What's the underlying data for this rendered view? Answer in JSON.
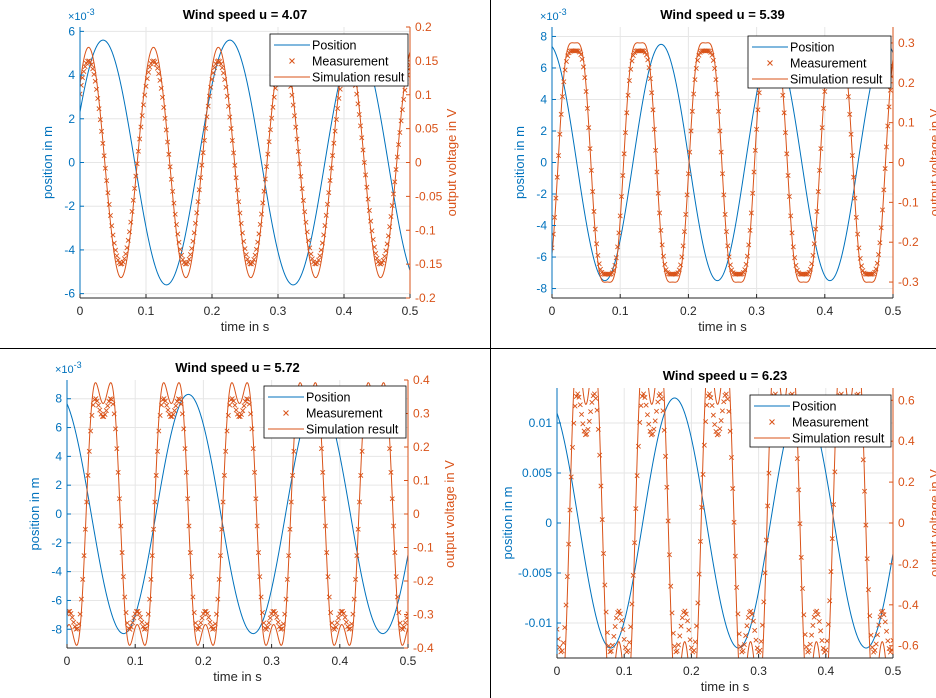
{
  "figure": {
    "colors": {
      "position": "#0072BD",
      "measurement": "#D95319",
      "simulation": "#D95319",
      "axis_left": "#0072BD",
      "axis_right": "#D95319",
      "grid": "#e6e6e6",
      "text": "#262626"
    }
  },
  "chart_data": [
    {
      "type": "line",
      "title": "Wind speed u = 4.07",
      "xlabel": "time in s",
      "ylabel": "position in m",
      "y2label": "output voltage in V",
      "y_exponent": "×10^-3",
      "xlim": [
        0,
        0.5
      ],
      "ylim": [
        -6.2,
        6.2
      ],
      "y2lim": [
        -0.2,
        0.2
      ],
      "xticks": [
        0,
        0.1,
        0.2,
        0.3,
        0.4,
        0.5
      ],
      "xtick_labels": [
        "0",
        "0.1",
        "0.2",
        "0.3",
        "0.4",
        "0.5"
      ],
      "yticks": [
        -6,
        -4,
        -2,
        0,
        2,
        4,
        6
      ],
      "ytick_labels": [
        "-6",
        "-4",
        "-2",
        "0",
        "2",
        "4",
        "6"
      ],
      "y2ticks": [
        -0.2,
        -0.15,
        -0.1,
        -0.05,
        0,
        0.05,
        0.1,
        0.15,
        0.2
      ],
      "y2tick_labels": [
        "-0.2",
        "-0.15",
        "-0.1",
        "-0.05",
        "0",
        "0.05",
        "0.1",
        "0.15",
        "0.2"
      ],
      "grid": true,
      "legend_position": "top-right",
      "series": [
        {
          "name": "Position",
          "axis": "left",
          "style": "line",
          "amplitude": 5.6,
          "period": 0.192,
          "peak_time": 0.035
        },
        {
          "name": "Measurement",
          "axis": "right",
          "style": "x",
          "amplitude": 0.15,
          "period": 0.0983,
          "peak_time": 0.013,
          "harmonic": 0.0
        },
        {
          "name": "Simulation result",
          "axis": "right",
          "style": "line",
          "amplitude": 0.17,
          "period": 0.0983,
          "peak_time": 0.013,
          "harmonic": 0.0
        }
      ]
    },
    {
      "type": "line",
      "title": "Wind speed u = 5.39",
      "xlabel": "time in s",
      "ylabel": "position in m",
      "y2label": "output voltage in V",
      "y_exponent": "×10^-3",
      "xlim": [
        0,
        0.5
      ],
      "ylim": [
        -8.6,
        8.6
      ],
      "y2lim": [
        -0.34,
        0.34
      ],
      "xticks": [
        0,
        0.1,
        0.2,
        0.3,
        0.4,
        0.5
      ],
      "xtick_labels": [
        "0",
        "0.1",
        "0.2",
        "0.3",
        "0.4",
        "0.5"
      ],
      "yticks": [
        -8,
        -6,
        -4,
        -2,
        0,
        2,
        4,
        6,
        8
      ],
      "ytick_labels": [
        "-8",
        "-6",
        "-4",
        "-2",
        "0",
        "2",
        "4",
        "6",
        "8"
      ],
      "y2ticks": [
        -0.3,
        -0.2,
        -0.1,
        0,
        0.1,
        0.2,
        0.3
      ],
      "y2tick_labels": [
        "-0.3",
        "-0.2",
        "-0.1",
        "0",
        "0.1",
        "0.2",
        "0.3"
      ],
      "grid": true,
      "legend_position": "top-right",
      "series": [
        {
          "name": "Position",
          "axis": "left",
          "style": "line",
          "amplitude": 7.5,
          "period": 0.165,
          "peak_time": 0.16
        },
        {
          "name": "Measurement",
          "axis": "right",
          "style": "x",
          "amplitude": 0.28,
          "period": 0.096,
          "peak_time": 0.033,
          "harmonic": 0.12
        },
        {
          "name": "Simulation result",
          "axis": "right",
          "style": "line",
          "amplitude": 0.3,
          "period": 0.096,
          "peak_time": 0.033,
          "harmonic": 0.12
        }
      ]
    },
    {
      "type": "line",
      "title": "Wind speed u = 5.72",
      "xlabel": "time in s",
      "ylabel": "position in m",
      "y2label": "output voltage in V",
      "y_exponent": "×10^-3",
      "xlim": [
        0,
        0.5
      ],
      "ylim": [
        -9.3,
        9.3
      ],
      "y2lim": [
        -0.4,
        0.4
      ],
      "xticks": [
        0,
        0.1,
        0.2,
        0.3,
        0.4,
        0.5
      ],
      "xtick_labels": [
        "0",
        "0.1",
        "0.2",
        "0.3",
        "0.4",
        "0.5"
      ],
      "yticks": [
        -8,
        -6,
        -4,
        -2,
        0,
        2,
        4,
        6,
        8
      ],
      "ytick_labels": [
        "-8",
        "-6",
        "-4",
        "-2",
        "0",
        "2",
        "4",
        "6",
        "8"
      ],
      "y2ticks": [
        -0.4,
        -0.3,
        -0.2,
        -0.1,
        0,
        0.1,
        0.2,
        0.3,
        0.4
      ],
      "y2tick_labels": [
        "-0.4",
        "-0.3",
        "-0.2",
        "-0.1",
        "0",
        "0.1",
        "0.2",
        "0.3",
        "0.4"
      ],
      "grid": true,
      "legend_position": "top-right",
      "series": [
        {
          "name": "Position",
          "axis": "left",
          "style": "line",
          "amplitude": 8.3,
          "period": 0.19,
          "peak_time": 0.178
        },
        {
          "name": "Measurement",
          "axis": "right",
          "style": "x",
          "amplitude": 0.29,
          "period": 0.1,
          "peak_time": 0.053,
          "harmonic": 0.25
        },
        {
          "name": "Simulation result",
          "axis": "right",
          "style": "line",
          "amplitude": 0.33,
          "period": 0.1,
          "peak_time": 0.053,
          "harmonic": 0.25
        }
      ]
    },
    {
      "type": "line",
      "title": "Wind speed u = 6.23",
      "xlabel": "time in s",
      "ylabel": "position in m",
      "y2label": "output voltage in V",
      "y_exponent": "",
      "xlim": [
        0,
        0.5
      ],
      "ylim": [
        -0.0135,
        0.0135
      ],
      "y2lim": [
        -0.66,
        0.66
      ],
      "xticks": [
        0,
        0.1,
        0.2,
        0.3,
        0.4,
        0.5
      ],
      "xtick_labels": [
        "0",
        "0.1",
        "0.2",
        "0.3",
        "0.4",
        "0.5"
      ],
      "yticks": [
        -0.01,
        -0.005,
        0,
        0.005,
        0.01
      ],
      "ytick_labels": [
        "-0.01",
        "-0.005",
        "0",
        "0.005",
        "0.01"
      ],
      "y2ticks": [
        -0.6,
        -0.4,
        -0.2,
        0,
        0.2,
        0.4,
        0.6
      ],
      "y2tick_labels": [
        "-0.6",
        "-0.4",
        "-0.2",
        "0",
        "0.2",
        "0.4",
        "0.6"
      ],
      "grid": true,
      "legend_position": "top-right",
      "series": [
        {
          "name": "Position",
          "axis": "left",
          "style": "line",
          "amplitude": 0.0125,
          "period": 0.19,
          "peak_time": 0.175
        },
        {
          "name": "Measurement",
          "axis": "right",
          "style": "x",
          "amplitude": 0.43,
          "period": 0.098,
          "peak_time": 0.043,
          "harmonic": 0.35
        },
        {
          "name": "Simulation result",
          "axis": "right",
          "style": "line",
          "amplitude": 0.58,
          "period": 0.098,
          "peak_time": 0.043,
          "harmonic": 0.35
        }
      ]
    }
  ]
}
